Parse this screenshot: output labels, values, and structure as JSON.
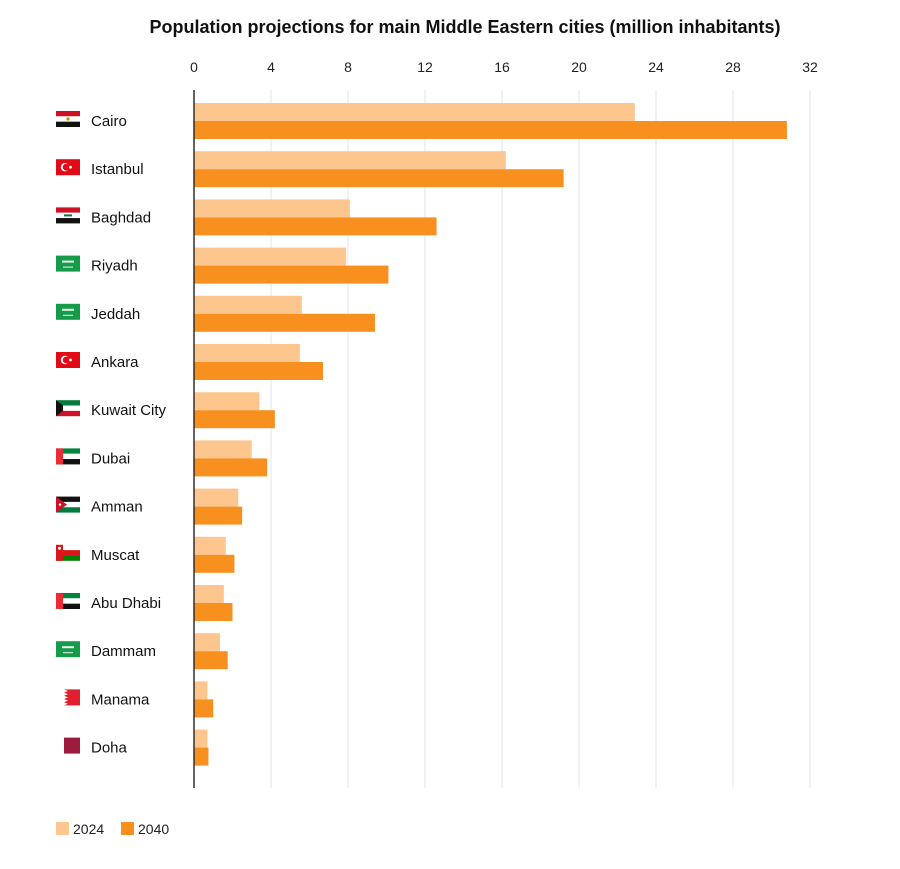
{
  "chart_data": {
    "type": "bar",
    "orientation": "horizontal",
    "title": "Population projections for main Middle Eastern cities (million inhabitants)",
    "xlabel": "",
    "ylabel": "",
    "xlim": [
      0,
      32
    ],
    "ticks": [
      0,
      4,
      8,
      12,
      16,
      20,
      24,
      28,
      32
    ],
    "grid": true,
    "legend_position": "bottom-left",
    "categories": [
      "Cairo",
      "Istanbul",
      "Baghdad",
      "Riyadh",
      "Jeddah",
      "Ankara",
      "Kuwait City",
      "Dubai",
      "Amman",
      "Muscat",
      "Abu Dhabi",
      "Dammam",
      "Manama",
      "Doha"
    ],
    "flags": [
      "egypt-flag-icon",
      "turkey-flag-icon",
      "iraq-flag-icon",
      "saudi-flag-icon",
      "saudi-flag-icon",
      "turkey-flag-icon",
      "kuwait-flag-icon",
      "uae-flag-icon",
      "jordan-flag-icon",
      "oman-flag-icon",
      "uae-flag-icon",
      "saudi-flag-icon",
      "bahrain-flag-icon",
      "qatar-flag-icon"
    ],
    "series": [
      {
        "name": "2024",
        "color": "#fdc68e",
        "values": [
          22.9,
          16.2,
          8.1,
          7.9,
          5.6,
          5.5,
          3.4,
          3.0,
          2.3,
          1.65,
          1.55,
          1.35,
          0.7,
          0.7
        ]
      },
      {
        "name": "2040",
        "color": "#f7901e",
        "values": [
          30.8,
          19.2,
          12.6,
          10.1,
          9.4,
          6.7,
          4.2,
          3.8,
          2.5,
          2.1,
          2.0,
          1.75,
          1.0,
          0.75
        ]
      }
    ]
  },
  "colors": {
    "grid": "#e6e6e6",
    "axis": "#222222",
    "text": "#111111"
  }
}
